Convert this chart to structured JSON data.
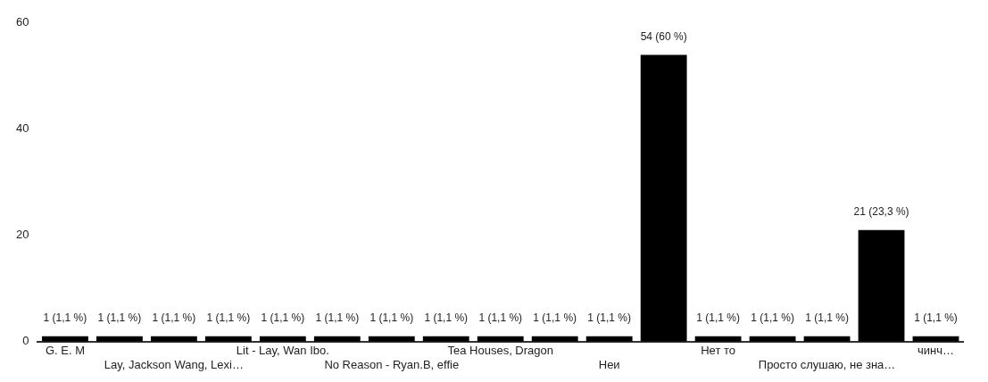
{
  "chart_data": {
    "type": "bar",
    "categories": [
      "G. E. M",
      null,
      "Lay, Jackson Wang, Lexi…",
      null,
      "Lit - Lay, Wan Ibo.",
      null,
      "No Reason - Ryan.B, effie",
      null,
      "Tea Houses, Dragon",
      null,
      "Неи",
      null,
      "Нет то",
      null,
      "Просто слушаю, не зна…",
      null,
      "чинч…"
    ],
    "values": [
      1,
      1,
      1,
      1,
      1,
      1,
      1,
      1,
      1,
      1,
      1,
      54,
      1,
      1,
      1,
      21,
      1
    ],
    "value_labels": [
      "1 (1,1 %)",
      "1 (1,1 %)",
      "1 (1,1 %)",
      "1 (1,1 %)",
      "1 (1,1 %)",
      "1 (1,1 %)",
      "1 (1,1 %)",
      "1 (1,1 %)",
      "1 (1,1 %)",
      "1 (1,1 %)",
      "1 (1,1 %)",
      "54 (60 %)",
      "1 (1,1 %)",
      "1 (1,1 %)",
      "1 (1,1 %)",
      "21 (23,3 %)",
      "1 (1,1 %)"
    ],
    "color": "#000000",
    "ylim": [
      0,
      60
    ],
    "yticks": [
      0,
      20,
      40,
      60
    ],
    "grid": false,
    "legend": false
  }
}
